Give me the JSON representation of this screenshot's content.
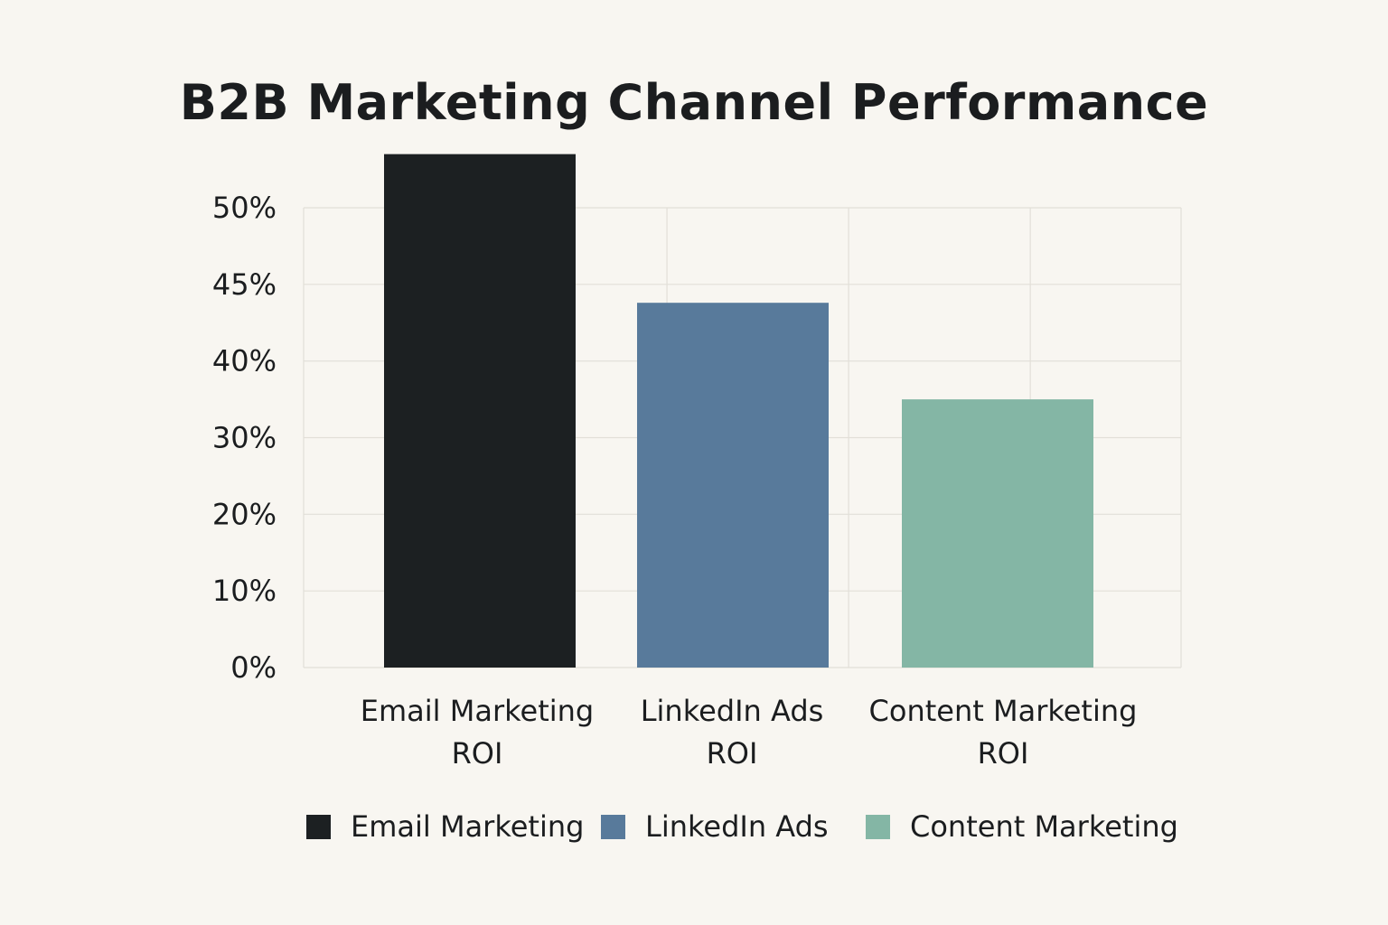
{
  "chart_data": {
    "type": "bar",
    "title": "B2B Marketing Channel Performance",
    "xlabel": "",
    "ylabel": "",
    "y_ticks": [
      {
        "value": 0,
        "label": "0%"
      },
      {
        "value": 10,
        "label": "10%"
      },
      {
        "value": 20,
        "label": "20%"
      },
      {
        "value": 30,
        "label": "30%"
      },
      {
        "value": 40,
        "label": "40%"
      },
      {
        "value": 45,
        "label": "45%"
      },
      {
        "value": 50,
        "label": "50%"
      }
    ],
    "categories": [
      [
        "Email Marketing",
        "ROI"
      ],
      [
        "LinkedIn Ads",
        "ROI"
      ],
      [
        "Content Marketing",
        "ROI"
      ]
    ],
    "values": [
      53.5,
      43.8,
      35
    ],
    "colors": [
      "#1c2022",
      "#587a9b",
      "#84b6a5"
    ],
    "legend": [
      {
        "label": "Email Marketing",
        "color": "#1c2022"
      },
      {
        "label": "LinkedIn Ads",
        "color": "#587a9b"
      },
      {
        "label": "Content Marketing",
        "color": "#84b6a5"
      }
    ],
    "legend_position": "bottom",
    "grid": true
  }
}
